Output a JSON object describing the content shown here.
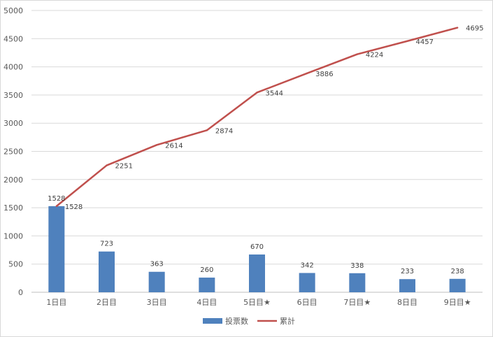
{
  "chart_data": {
    "type": "bar",
    "categories": [
      "1日目",
      "2日目",
      "3日目",
      "4日目",
      "5日目★",
      "6日目",
      "7日目★",
      "8日目",
      "9日目★"
    ],
    "series": [
      {
        "name": "投票数",
        "type": "bar",
        "color": "#4f81bd",
        "values": [
          1528,
          723,
          363,
          260,
          670,
          342,
          338,
          233,
          238
        ]
      },
      {
        "name": "累計",
        "type": "line",
        "color": "#c0504d",
        "values": [
          1528,
          2251,
          2614,
          2874,
          3544,
          3886,
          4224,
          4457,
          4695
        ]
      }
    ],
    "ylim": [
      0,
      5000
    ],
    "yticks": [
      0,
      500,
      1000,
      1500,
      2000,
      2500,
      3000,
      3500,
      4000,
      4500,
      5000
    ],
    "grid": true,
    "legend": "bottom",
    "data_labels": true
  }
}
